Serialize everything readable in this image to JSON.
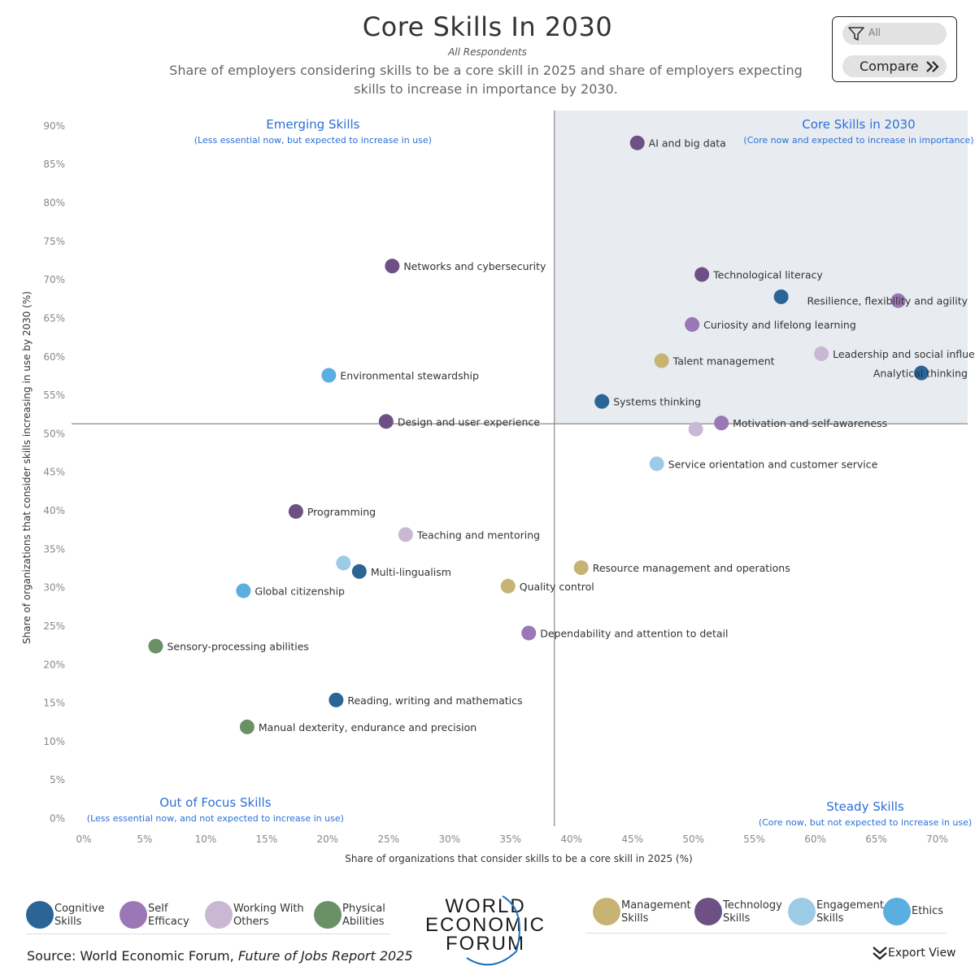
{
  "header": {
    "title": "Core Skills In 2030",
    "subtitle": "All Respondents",
    "description": "Share of employers considering skills to be a core skill in 2025 and share of employers expecting skills to increase in importance by 2030."
  },
  "controls": {
    "filter_value": "All",
    "compare_label": "Compare"
  },
  "footer": {
    "source_prefix": "Source: World Economic Forum, ",
    "source_italic": "Future of Jobs Report 2025",
    "export_label": "Export View",
    "logo_lines": [
      "WORLD",
      "ECONOMIC",
      "FORUM"
    ]
  },
  "legend": [
    {
      "name": "Cognitive Skills",
      "line1": "Cognitive",
      "line2": "Skills",
      "color": "#2a6596"
    },
    {
      "name": "Self Efficacy",
      "line1": "Self",
      "line2": "Efficacy",
      "color": "#9b77b5"
    },
    {
      "name": "Working With Others",
      "line1": "Working With",
      "line2": "Others",
      "color": "#c9b8d3"
    },
    {
      "name": "Physical Abilities",
      "line1": "Physical",
      "line2": "Abilities",
      "color": "#6a9068"
    },
    {
      "name": "Management Skills",
      "line1": "Management",
      "line2": "Skills",
      "color": "#c7b474"
    },
    {
      "name": "Technology Skills",
      "line1": "Technology",
      "line2": "Skills",
      "color": "#6e5184"
    },
    {
      "name": "Engagement Skills",
      "line1": "Engagement",
      "line2": "Skills",
      "color": "#9ccbe6"
    },
    {
      "name": "Ethics",
      "line1": "Ethics",
      "line2": "",
      "color": "#5aaee0"
    }
  ],
  "chart_data": {
    "type": "scatter",
    "xlabel": "Share of organizations that consider skills to be a core skill in 2025 (%)",
    "ylabel": "Share of organizations that consider skills increasing in use by 2030 (%)",
    "xlim": [
      -1,
      72.5
    ],
    "ylim": [
      -1,
      92
    ],
    "x_ticks": [
      0,
      5,
      10,
      15,
      20,
      25,
      30,
      35,
      40,
      45,
      50,
      55,
      60,
      65,
      70
    ],
    "y_ticks": [
      0,
      5,
      10,
      15,
      20,
      25,
      30,
      35,
      40,
      45,
      50,
      55,
      60,
      65,
      70,
      75,
      80,
      85,
      90
    ],
    "tick_suffix": "%",
    "x_divider": 38.6,
    "y_divider": 51.3,
    "highlight_quadrant": "top-right",
    "quadrants": [
      {
        "id": "emerging",
        "title": "Emerging Skills",
        "note": "(Less essential now, but expected to increase in use)",
        "position": "top-left"
      },
      {
        "id": "core",
        "title": "Core Skills in 2030",
        "note": "(Core now and expected to increase in importance)",
        "position": "top-right"
      },
      {
        "id": "out-of-focus",
        "title": "Out of Focus Skills",
        "note": "(Less essential now, and not expected to increase in use)",
        "position": "bottom-left"
      },
      {
        "id": "steady",
        "title": "Steady Skills",
        "note": "(Core now, but not expected to increase in use)",
        "position": "bottom-right"
      }
    ],
    "points": [
      {
        "label": "AI and big data",
        "x": 45.4,
        "y": 87.8,
        "category": "Technology Skills"
      },
      {
        "label": "Networks and cybersecurity",
        "x": 25.3,
        "y": 71.8,
        "category": "Technology Skills"
      },
      {
        "label": "Technological literacy",
        "x": 50.7,
        "y": 70.7,
        "category": "Technology Skills"
      },
      {
        "label": "",
        "x": 57.2,
        "y": 67.8,
        "category": "Cognitive Skills"
      },
      {
        "label": "Resilience, flexibility and agility",
        "x": 66.8,
        "y": 67.3,
        "category": "Self Efficacy",
        "align": "left"
      },
      {
        "label": "Curiosity and lifelong learning",
        "x": 49.9,
        "y": 64.2,
        "category": "Self Efficacy"
      },
      {
        "label": "Leadership and social influence",
        "x": 60.5,
        "y": 60.4,
        "category": "Working With Others"
      },
      {
        "label": "Talent management",
        "x": 47.4,
        "y": 59.5,
        "category": "Management Skills"
      },
      {
        "label": "Environmental stewardship",
        "x": 20.1,
        "y": 57.6,
        "category": "Ethics"
      },
      {
        "label": "Analytical thinking",
        "x": 68.7,
        "y": 57.9,
        "category": "Cognitive Skills",
        "align": "left"
      },
      {
        "label": "Systems thinking",
        "x": 42.5,
        "y": 54.2,
        "category": "Cognitive Skills"
      },
      {
        "label": "Design and user experience",
        "x": 24.8,
        "y": 51.6,
        "category": "Technology Skills"
      },
      {
        "label": "Motivation and self-awareness",
        "x": 52.3,
        "y": 51.4,
        "category": "Self Efficacy"
      },
      {
        "label": "",
        "x": 50.2,
        "y": 50.6,
        "category": "Working With Others"
      },
      {
        "label": "Service orientation and customer service",
        "x": 47.0,
        "y": 46.1,
        "category": "Engagement Skills"
      },
      {
        "label": "Programming",
        "x": 17.4,
        "y": 39.9,
        "category": "Technology Skills"
      },
      {
        "label": "Teaching and mentoring",
        "x": 26.4,
        "y": 36.9,
        "category": "Working With Others"
      },
      {
        "label": "",
        "x": 21.3,
        "y": 33.2,
        "category": "Engagement Skills"
      },
      {
        "label": "Multi-lingualism",
        "x": 22.6,
        "y": 32.1,
        "category": "Cognitive Skills"
      },
      {
        "label": "Resource management and operations",
        "x": 40.8,
        "y": 32.6,
        "category": "Management Skills"
      },
      {
        "label": "Quality control",
        "x": 34.8,
        "y": 30.2,
        "category": "Management Skills"
      },
      {
        "label": "Global citizenship",
        "x": 13.1,
        "y": 29.6,
        "category": "Ethics"
      },
      {
        "label": "Dependability and attention to detail",
        "x": 36.5,
        "y": 24.1,
        "category": "Self Efficacy"
      },
      {
        "label": "Sensory-processing abilities",
        "x": 5.9,
        "y": 22.4,
        "category": "Physical Abilities"
      },
      {
        "label": "Reading, writing and mathematics",
        "x": 20.7,
        "y": 15.4,
        "category": "Cognitive Skills"
      },
      {
        "label": "Manual dexterity, endurance and precision",
        "x": 13.4,
        "y": 11.9,
        "category": "Physical Abilities"
      }
    ]
  }
}
